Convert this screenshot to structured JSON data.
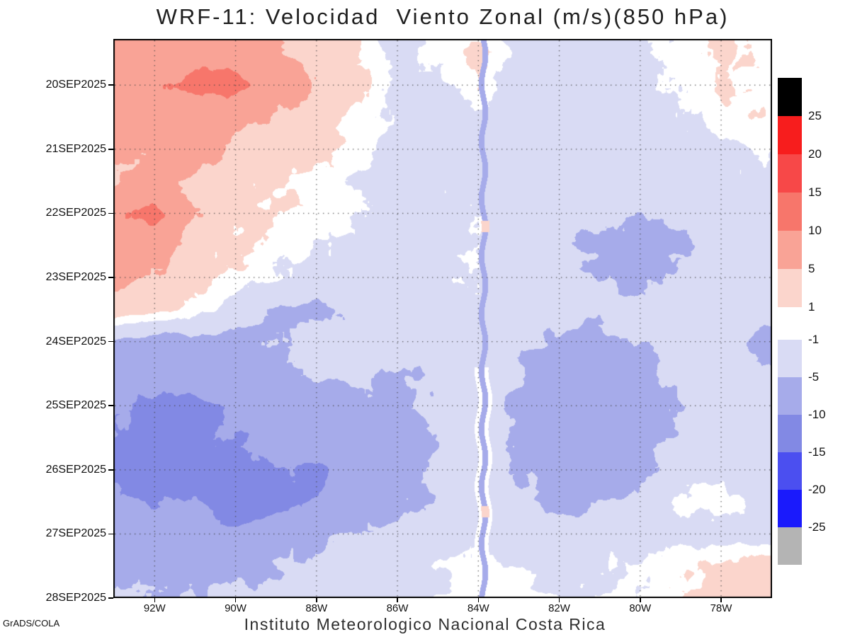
{
  "title": "WRF-11: Velocidad  Viento Zonal (m/s)(850 hPa)",
  "footer": {
    "credit": "GrADS/COLA",
    "institution": "Instituto Meteorologico Nacional Costa Rica"
  },
  "chart_data": {
    "type": "heatmap",
    "title": "WRF-11: Velocidad  Viento Zonal (m/s)(850 hPa)",
    "units": "m/s",
    "grid": "dotted",
    "legend_position": "right",
    "x_axis": {
      "tick_values": [
        92,
        90,
        88,
        86,
        84,
        82,
        80,
        78
      ],
      "tick_labels": [
        "92W",
        "90W",
        "88W",
        "86W",
        "84W",
        "82W",
        "80W",
        "78W"
      ],
      "range": [
        93.02,
        76.74
      ]
    },
    "y_axis": {
      "tick_values": [
        20,
        21,
        22,
        23,
        24,
        25,
        26,
        27,
        28
      ],
      "tick_labels": [
        "20SEP2025",
        "21SEP2025",
        "22SEP2025",
        "23SEP2025",
        "24SEP2025",
        "25SEP2025",
        "26SEP2025",
        "27SEP2025",
        "28SEP2025"
      ],
      "range": [
        19.28,
        28
      ]
    },
    "levels": [
      -25,
      -20,
      -15,
      -10,
      -5,
      -1,
      1,
      5,
      10,
      15,
      20,
      25
    ],
    "colors": [
      "#b4b4b4",
      "#1a1afc",
      "#4b4ff0",
      "#8289e4",
      "#a6abea",
      "#d9dbf4",
      "#ffffff",
      "#fbd5cc",
      "#f9a396",
      "#f7766b",
      "#f74848",
      "#f71d1d",
      "#000000"
    ],
    "lons": [
      93,
      92,
      91,
      90,
      89,
      88,
      87,
      86,
      85,
      84,
      83,
      82,
      81,
      80,
      79,
      78,
      77
    ],
    "times": [
      19.5,
      20,
      20.5,
      21,
      21.5,
      22,
      22.5,
      23,
      23.5,
      24,
      24.5,
      25,
      25.5,
      26,
      26.5,
      27,
      27.5,
      28
    ],
    "values": [
      [
        6,
        7,
        8,
        8,
        6,
        4,
        1,
        -2,
        -0.5,
        1.5,
        -2,
        -2.5,
        -2,
        -1.5,
        0,
        2,
        0.5
      ],
      [
        7,
        9,
        12,
        12,
        7,
        5,
        2,
        -1.5,
        -2,
        0.5,
        -2.5,
        -3,
        -2.5,
        -2,
        -1,
        1.5,
        0
      ],
      [
        6,
        7,
        6,
        6,
        5,
        3,
        0.5,
        -2,
        -2.5,
        -1.5,
        -3,
        -3,
        -2.5,
        -2,
        -1.5,
        0,
        0.5
      ],
      [
        5,
        6,
        8,
        4,
        3,
        2,
        0,
        -2,
        -2.5,
        -2,
        -3,
        -3,
        -2.5,
        -2,
        -2,
        -1.5,
        -1
      ],
      [
        5,
        6,
        4,
        2,
        1.5,
        0.5,
        -1.5,
        -2.5,
        -2,
        -1,
        -2.5,
        -3,
        -3,
        -2.5,
        -2,
        -2,
        -1.5
      ],
      [
        9,
        11,
        5,
        2,
        1,
        0.5,
        -1,
        -2.5,
        -2,
        -1.5,
        -2,
        -3.5,
        -4,
        -5,
        -3,
        -2,
        -2
      ],
      [
        8,
        7,
        3,
        1,
        0.5,
        -1,
        -2,
        -2.5,
        -2,
        -1,
        -3,
        -4,
        -6,
        -7,
        -6,
        -3,
        -2.5
      ],
      [
        6,
        5,
        2,
        0.5,
        -1,
        -2,
        -2.5,
        -2,
        -1.5,
        -1,
        -2.5,
        -4,
        -5,
        -6,
        -4,
        -2.5,
        -2
      ],
      [
        3,
        2,
        0,
        -3,
        -6,
        -6,
        -4,
        -2.5,
        -2,
        -1.5,
        -3,
        -3.5,
        -4,
        -3.5,
        -3,
        -2.5,
        -3
      ],
      [
        -6,
        -7,
        -6,
        -6,
        -5,
        -4,
        -3,
        -3,
        -2.5,
        -2,
        -4,
        -6,
        -6,
        -5,
        -3,
        -2.5,
        -6
      ],
      [
        -7,
        -8,
        -7,
        -7,
        -6,
        -5,
        -4,
        -6,
        -4,
        -2,
        -5,
        -7,
        -7,
        -6,
        -4,
        -3,
        -5
      ],
      [
        -9,
        -11,
        -11,
        -9,
        -8,
        -7,
        -6,
        -6,
        -4,
        -2.5,
        -6,
        -8,
        -8,
        -7,
        -5,
        -3,
        -3
      ],
      [
        -10,
        -12,
        -11,
        -10,
        -9,
        -8,
        -7,
        -7,
        -5,
        -3,
        -6,
        -8,
        -7,
        -6,
        -4,
        -2.5,
        -2.5
      ],
      [
        -11,
        -13,
        -12,
        -12,
        -10,
        -11,
        -8,
        -7,
        -5,
        -3,
        -5,
        -7,
        -7,
        -6,
        -3,
        -2,
        -2
      ],
      [
        -9,
        -10,
        -9,
        -15,
        -11,
        -9,
        -8,
        -6,
        -4,
        -2.5,
        -4,
        -6,
        -5,
        -4,
        -0.5,
        -0.5,
        -2
      ],
      [
        -7,
        -8,
        -8,
        -8,
        -7,
        -6,
        -5,
        -4,
        -3,
        -2,
        -3,
        -3,
        -2.5,
        -2,
        -2,
        -2.5,
        -3
      ],
      [
        -6,
        -7,
        -6,
        -6,
        -5,
        -4,
        -3,
        -2.5,
        -1,
        -0.5,
        -1.5,
        -2,
        -1.5,
        -0.5,
        0.5,
        2,
        2.5
      ],
      [
        -4,
        -5,
        -5,
        -4,
        -4,
        -3,
        -2.5,
        -2,
        -1.5,
        0.5,
        0.5,
        -1.5,
        -1,
        -0.5,
        1,
        3,
        2
      ]
    ],
    "stripe": {
      "lon": 83.88,
      "half_width": 0.07,
      "value": -6.5,
      "white_margin_from_t": 24.4,
      "pink_dots_t": [
        22.2,
        26.65
      ]
    },
    "legend": {
      "top": {
        "labels": [
          "25",
          "20",
          "15",
          "10",
          "5",
          "1"
        ],
        "colors": [
          "#000000",
          "#f71d1d",
          "#f74848",
          "#f7766b",
          "#f9a396",
          "#fbd5cc"
        ]
      },
      "bottom": {
        "labels": [
          "-1",
          "-5",
          "-10",
          "-15",
          "-20",
          "-25"
        ],
        "colors": [
          "#d9dbf4",
          "#a6abea",
          "#8289e4",
          "#4b4ff0",
          "#1a1afc",
          "#b4b4b4"
        ]
      }
    }
  }
}
